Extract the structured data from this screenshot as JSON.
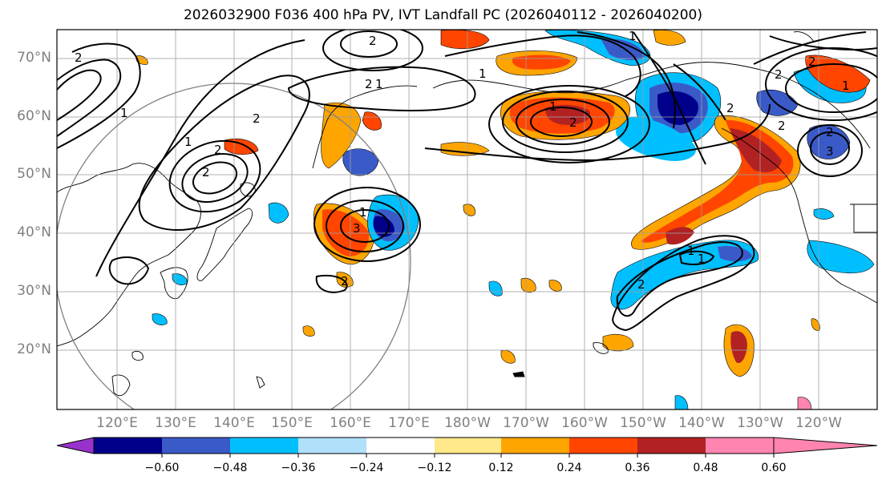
{
  "title": "2026032900 F036 400 hPa PV, IVT Landfall PC (2026040112 - 2026040200)",
  "map": {
    "lat_labels": [
      "70°N",
      "60°N",
      "50°N",
      "40°N",
      "30°N",
      "20°N"
    ],
    "lon_labels": [
      "120°E",
      "130°E",
      "140°E",
      "150°E",
      "160°E",
      "170°E",
      "180°W",
      "170°W",
      "160°W",
      "150°W",
      "140°W",
      "130°W",
      "120°W"
    ],
    "contour_labels": [
      "2",
      "2",
      "1",
      "1",
      "2",
      "2",
      "2",
      "2",
      "1",
      "1",
      "3",
      "2",
      "1",
      "2",
      "1",
      "1",
      "1",
      "1",
      "2",
      "2",
      "2",
      "2",
      "2",
      "3",
      "1",
      "2"
    ]
  },
  "colorbar": {
    "tick_labels": [
      "−0.60",
      "−0.48",
      "−0.36",
      "−0.24",
      "−0.12",
      "0.12",
      "0.24",
      "0.36",
      "0.48",
      "0.60"
    ],
    "colors": [
      "#9932cc",
      "#00008b",
      "#3a5ac8",
      "#00bfff",
      "#b0e0fa",
      "#ffffff",
      "#ffe98a",
      "#ffa500",
      "#ff4500",
      "#b22222",
      "#ff85b0"
    ]
  },
  "palette": {
    "dark_blue": "#00008b",
    "mid_blue": "#3a5ac8",
    "cyan": "#00bfff",
    "light_blue": "#b0e0fa",
    "yellow": "#ffe98a",
    "orange": "#ffa500",
    "red_orange": "#ff4500",
    "dark_red": "#b22222",
    "axis_gray": "#808080"
  }
}
